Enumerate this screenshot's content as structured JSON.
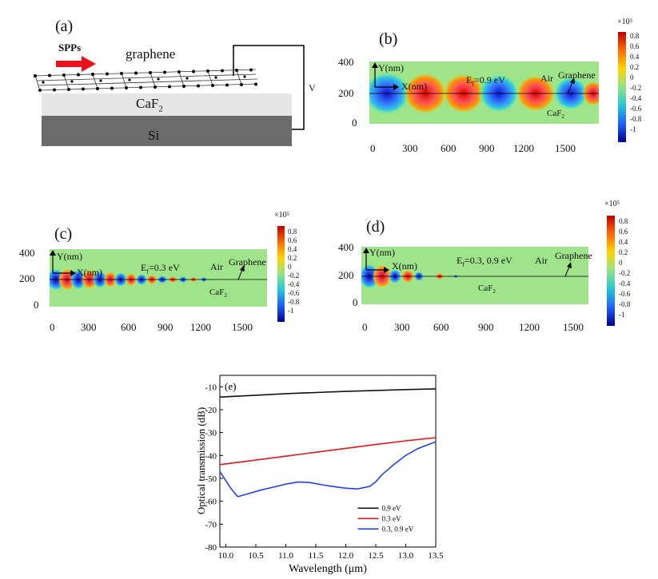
{
  "panel_a": {
    "label": "(a)",
    "spp_label": "SPPs",
    "graphene_label": "graphene",
    "caf2_label": "CaF",
    "caf2_sub": "2",
    "si_label": "Si",
    "voltage_label": "V",
    "colors": {
      "arrow": "#e8141b",
      "caf2": "#e6e6e6",
      "si": "#6b6b6b"
    }
  },
  "panel_b": {
    "label": "(b)",
    "y_axis_label": "Y(nm)",
    "x_axis_label": "X(nm)",
    "ef_label": "E",
    "ef_sub": "f",
    "ef_value": "=0.9 eV",
    "air_label": "Air",
    "graphene_label": "Graphene",
    "caf2_label": "CaF",
    "caf2_sub": "2",
    "yticks": [
      "400",
      "200",
      "0"
    ],
    "xticks": [
      "0",
      "300",
      "600",
      "900",
      "1200",
      "1500"
    ],
    "colorbar_exponent": "×10⁵",
    "colorbar_ticks": [
      "0.8",
      "0.6",
      "0.4",
      "0.2",
      "0",
      "-0.2",
      "-0.4",
      "-0.6",
      "-0.8",
      "-1"
    ]
  },
  "panel_c": {
    "label": "(c)",
    "y_axis_label": "Y(nm)",
    "x_axis_label": "X(nm)",
    "ef_label": "E",
    "ef_sub": "f",
    "ef_value": "=0.3 eV",
    "air_label": "Air",
    "graphene_label": "Graphene",
    "caf2_label": "CaF",
    "caf2_sub": "2",
    "yticks": [
      "400",
      "200",
      "0"
    ],
    "xticks": [
      "0",
      "300",
      "600",
      "900",
      "1200",
      "1500"
    ],
    "colorbar_exponent": "×10⁵",
    "colorbar_ticks": [
      "0.8",
      "0.6",
      "0.4",
      "0.2",
      "0",
      "-0.2",
      "-0.4",
      "-0.6",
      "-0.8",
      "-1"
    ]
  },
  "panel_d": {
    "label": "(d)",
    "y_axis_label": "Y(nm)",
    "x_axis_label": "X(nm)",
    "ef_label": "E",
    "ef_sub": "f",
    "ef_value": "=0.3, 0.9 eV",
    "air_label": "Air",
    "graphene_label": "Graphene",
    "caf2_label": "CaF",
    "caf2_sub": "2",
    "yticks": [
      "400",
      "200",
      "0"
    ],
    "xticks": [
      "0",
      "300",
      "600",
      "900",
      "1200",
      "1500"
    ],
    "colorbar_exponent": "×10⁵",
    "colorbar_ticks": [
      "0.8",
      "0.6",
      "0.4",
      "0.2",
      "0",
      "-0.2",
      "-0.4",
      "-0.6",
      "-0.8",
      "-1"
    ]
  },
  "chart_data": {
    "type": "line",
    "panel_label": "(e)",
    "xlabel": "Wavelength (μm)",
    "ylabel": "Optical transmission (dB)",
    "xlim": [
      9.9,
      13.5
    ],
    "ylim": [
      -80,
      -5
    ],
    "xticks": [
      "10.0",
      "10.5",
      "11.0",
      "11.5",
      "12.0",
      "12.5",
      "13.0",
      "13.5"
    ],
    "yticks": [
      "-10",
      "-20",
      "-30",
      "-40",
      "-50",
      "-60",
      "-70",
      "-80"
    ],
    "legend_position": "bottom-right",
    "series": [
      {
        "name": "0.9  eV",
        "color": "#111111",
        "x": [
          9.9,
          10.5,
          11.0,
          11.5,
          12.0,
          12.5,
          13.0,
          13.5
        ],
        "y": [
          -14.5,
          -13.7,
          -13.0,
          -12.5,
          -12.0,
          -11.6,
          -11.2,
          -10.9
        ]
      },
      {
        "name": "0.3  eV",
        "color": "#e8141b",
        "x": [
          9.9,
          10.5,
          11.0,
          11.5,
          12.0,
          12.5,
          13.0,
          13.5
        ],
        "y": [
          -44,
          -42,
          -40.3,
          -38.6,
          -36.9,
          -35.2,
          -33.6,
          -32.2
        ]
      },
      {
        "name": "0.3, 0.9  eV",
        "color": "#1f3fff",
        "x": [
          9.9,
          10.0,
          10.1,
          10.2,
          10.4,
          10.6,
          10.8,
          11.0,
          11.2,
          11.4,
          11.6,
          11.8,
          12.0,
          12.2,
          12.4,
          12.5,
          12.6,
          12.8,
          13.0,
          13.2,
          13.4,
          13.5
        ],
        "y": [
          -47,
          -51,
          -55,
          -58,
          -56.5,
          -55,
          -53.8,
          -52.5,
          -51.6,
          -51.8,
          -52.8,
          -53.6,
          -54.3,
          -54.6,
          -53.5,
          -51.5,
          -48.5,
          -44,
          -40,
          -37,
          -35,
          -34
        ]
      }
    ]
  }
}
